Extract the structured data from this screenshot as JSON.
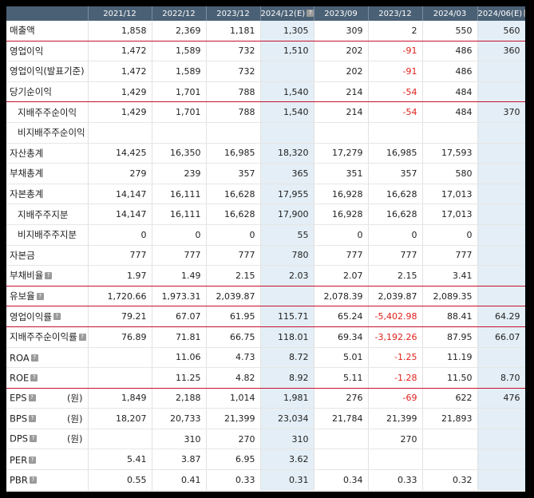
{
  "headers": [
    "",
    "2021/12",
    "2022/12",
    "2023/12",
    "2024/12(E)",
    "2023/09",
    "2023/12",
    "2024/03",
    "2024/06(E)"
  ],
  "estimate_columns": [
    4,
    8
  ],
  "rows": [
    {
      "label": "매출액",
      "indent": false,
      "help": false,
      "unit": "",
      "sep": true,
      "cells": [
        "1,858",
        "2,369",
        "1,181",
        "1,305",
        "309",
        "2",
        "550",
        "560"
      ]
    },
    {
      "label": "영업이익",
      "indent": false,
      "help": false,
      "unit": "",
      "sep": false,
      "cells": [
        "1,472",
        "1,589",
        "732",
        "1,510",
        "202",
        "-91",
        "486",
        "360"
      ]
    },
    {
      "label": "영업이익(발표기준)",
      "indent": false,
      "help": false,
      "unit": "",
      "sep": false,
      "cells": [
        "1,472",
        "1,589",
        "732",
        "",
        "202",
        "-91",
        "486",
        ""
      ]
    },
    {
      "label": "당기순이익",
      "indent": false,
      "help": false,
      "unit": "",
      "sep": true,
      "cells": [
        "1,429",
        "1,701",
        "788",
        "1,540",
        "214",
        "-54",
        "484",
        ""
      ]
    },
    {
      "label": "지배주주순이익",
      "indent": true,
      "help": false,
      "unit": "",
      "sep": false,
      "cells": [
        "1,429",
        "1,701",
        "788",
        "1,540",
        "214",
        "-54",
        "484",
        "370"
      ]
    },
    {
      "label": "비지배주주순이익",
      "indent": true,
      "help": false,
      "unit": "",
      "sep": false,
      "cells": [
        "",
        "",
        "",
        "",
        "",
        "",
        "",
        ""
      ]
    },
    {
      "label": "자산총계",
      "indent": false,
      "help": false,
      "unit": "",
      "sep": false,
      "cells": [
        "14,425",
        "16,350",
        "16,985",
        "18,320",
        "17,279",
        "16,985",
        "17,593",
        ""
      ]
    },
    {
      "label": "부채총계",
      "indent": false,
      "help": false,
      "unit": "",
      "sep": false,
      "cells": [
        "279",
        "239",
        "357",
        "365",
        "351",
        "357",
        "580",
        ""
      ]
    },
    {
      "label": "자본총계",
      "indent": false,
      "help": false,
      "unit": "",
      "sep": false,
      "cells": [
        "14,147",
        "16,111",
        "16,628",
        "17,955",
        "16,928",
        "16,628",
        "17,013",
        ""
      ]
    },
    {
      "label": "지배주주지분",
      "indent": true,
      "help": false,
      "unit": "",
      "sep": false,
      "cells": [
        "14,147",
        "16,111",
        "16,628",
        "17,900",
        "16,928",
        "16,628",
        "17,013",
        ""
      ]
    },
    {
      "label": "비지배주주지분",
      "indent": true,
      "help": false,
      "unit": "",
      "sep": false,
      "cells": [
        "0",
        "0",
        "0",
        "55",
        "0",
        "0",
        "0",
        ""
      ]
    },
    {
      "label": "자본금",
      "indent": false,
      "help": false,
      "unit": "",
      "sep": false,
      "cells": [
        "777",
        "777",
        "777",
        "780",
        "777",
        "777",
        "777",
        ""
      ]
    },
    {
      "label": "부채비율",
      "indent": false,
      "help": true,
      "unit": "",
      "sep": true,
      "cells": [
        "1.97",
        "1.49",
        "2.15",
        "2.03",
        "2.07",
        "2.15",
        "3.41",
        ""
      ]
    },
    {
      "label": "유보율",
      "indent": false,
      "help": true,
      "unit": "",
      "sep": true,
      "cells": [
        "1,720.66",
        "1,973.31",
        "2,039.87",
        "",
        "2,078.39",
        "2,039.87",
        "2,089.35",
        ""
      ]
    },
    {
      "label": "영업이익률",
      "indent": false,
      "help": true,
      "unit": "",
      "sep": true,
      "cells": [
        "79.21",
        "67.07",
        "61.95",
        "115.71",
        "65.24",
        "-5,402.98",
        "88.41",
        "64.29"
      ]
    },
    {
      "label": "지배주주순이익률",
      "indent": false,
      "help": true,
      "unit": "",
      "sep": false,
      "cells": [
        "76.89",
        "71.81",
        "66.75",
        "118.01",
        "69.34",
        "-3,192.26",
        "87.95",
        "66.07"
      ]
    },
    {
      "label": "ROA",
      "indent": false,
      "help": true,
      "unit": "",
      "sep": false,
      "cells": [
        "",
        "11.06",
        "4.73",
        "8.72",
        "5.01",
        "-1.25",
        "11.19",
        ""
      ]
    },
    {
      "label": "ROE",
      "indent": false,
      "help": true,
      "unit": "",
      "sep": true,
      "cells": [
        "",
        "11.25",
        "4.82",
        "8.92",
        "5.11",
        "-1.28",
        "11.50",
        "8.70"
      ]
    },
    {
      "label": "EPS",
      "indent": false,
      "help": true,
      "unit": "(원)",
      "sep": false,
      "cells": [
        "1,849",
        "2,188",
        "1,014",
        "1,981",
        "276",
        "-69",
        "622",
        "476"
      ]
    },
    {
      "label": "BPS",
      "indent": false,
      "help": true,
      "unit": "(원)",
      "sep": false,
      "cells": [
        "18,207",
        "20,733",
        "21,399",
        "23,034",
        "21,784",
        "21,399",
        "21,893",
        ""
      ]
    },
    {
      "label": "DPS",
      "indent": false,
      "help": true,
      "unit": "(원)",
      "sep": false,
      "cells": [
        "",
        "310",
        "270",
        "310",
        "",
        "270",
        "",
        ""
      ]
    },
    {
      "label": "PER",
      "indent": false,
      "help": true,
      "unit": "",
      "sep": false,
      "cells": [
        "5.41",
        "3.87",
        "6.95",
        "3.62",
        "",
        "",
        "",
        ""
      ]
    },
    {
      "label": "PBR",
      "indent": false,
      "help": true,
      "unit": "",
      "sep": false,
      "cells": [
        "0.55",
        "0.41",
        "0.33",
        "0.31",
        "0.34",
        "0.33",
        "0.32",
        ""
      ]
    }
  ]
}
